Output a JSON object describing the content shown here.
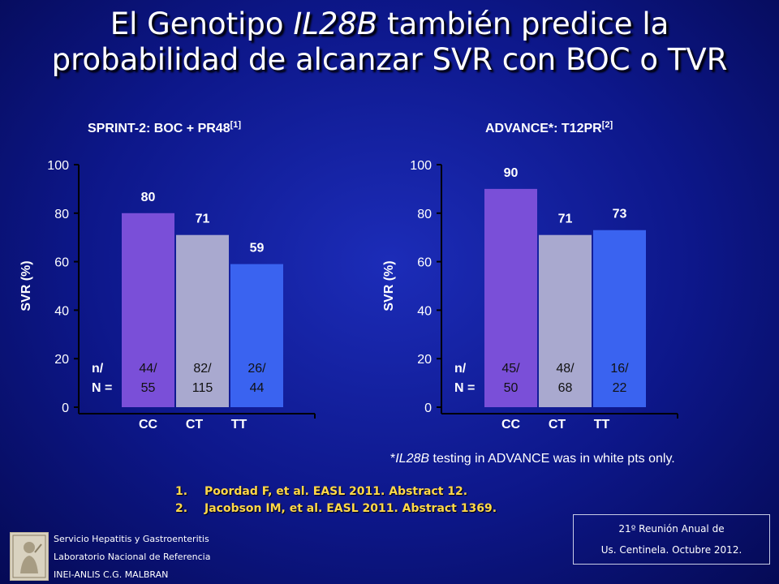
{
  "slide": {
    "title_pre": "El Genotipo ",
    "title_em": "IL28B",
    "title_post": " también predice la",
    "title_line2": "probabilidad de alcanzar SVR con BOC o TVR",
    "footnote_star": "*",
    "footnote_em": "IL28B",
    "footnote_rest": " testing in ADVANCE was in white pts only.",
    "references": [
      {
        "num": "1.",
        "text": "Poordad F, et al. EASL 2011. Abstract 12."
      },
      {
        "num": "2.",
        "text": "Jacobson IM, et al. EASL 2011. Abstract 1369."
      }
    ],
    "institution": [
      "Servicio Hepatitis y Gastroenteritis",
      "Laboratorio Nacional de Referencia",
      "INEI-ANLIS C.G. MALBRAN"
    ],
    "meeting": [
      "21º Reunión Anual de",
      "Us.  Centinela. Octubre 2012."
    ]
  },
  "chart_data": [
    {
      "type": "bar",
      "title": "SPRINT-2: BOC + PR48",
      "title_ref": "[1]",
      "ylabel": "SVR (%)",
      "ylim": [
        0,
        100
      ],
      "yticks": [
        "0",
        "20",
        "40",
        "60",
        "80",
        "100"
      ],
      "categories": [
        "CC",
        "CT",
        "TT"
      ],
      "values": [
        80,
        71,
        59
      ],
      "value_labels": [
        "80",
        "71",
        "59"
      ],
      "n_label": [
        "n/",
        "N ="
      ],
      "n_values": [
        [
          "44/",
          "55"
        ],
        [
          "82/",
          "115"
        ],
        [
          "26/",
          "44"
        ]
      ],
      "colors": [
        "#7a4fd8",
        "#a9a9cf",
        "#3a63f0"
      ]
    },
    {
      "type": "bar",
      "title": "ADVANCE*:  T12PR",
      "title_ref": "[2]",
      "ylabel": "SVR (%)",
      "ylim": [
        0,
        100
      ],
      "yticks": [
        "0",
        "20",
        "40",
        "60",
        "80",
        "100"
      ],
      "categories": [
        "CC",
        "CT",
        "TT"
      ],
      "values": [
        90,
        71,
        73
      ],
      "value_labels": [
        "90",
        "71",
        "73"
      ],
      "n_label": [
        "n/",
        "N ="
      ],
      "n_values": [
        [
          "45/",
          "50"
        ],
        [
          "48/",
          "68"
        ],
        [
          "16/",
          "22"
        ]
      ],
      "colors": [
        "#7a4fd8",
        "#a9a9cf",
        "#3a63f0"
      ]
    }
  ]
}
